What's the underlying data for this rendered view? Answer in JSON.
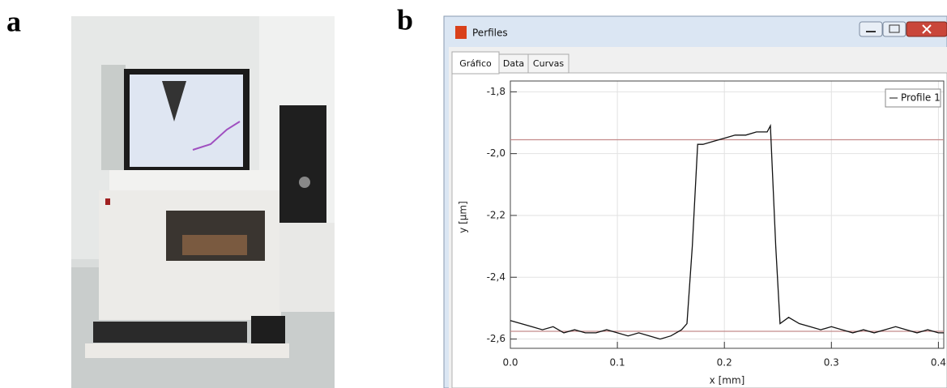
{
  "panel_labels": [
    "a",
    "b"
  ],
  "window": {
    "title": "Perfiles",
    "tabs": [
      "Gráfico",
      "Data",
      "Curvas"
    ]
  },
  "chart_data": {
    "type": "line",
    "xlabel": "x [mm]",
    "ylabel": "y [µm]",
    "x": [
      0,
      0.01,
      0.02,
      0.03,
      0.04,
      0.05,
      0.06,
      0.07,
      0.08,
      0.09,
      0.1,
      0.11,
      0.12,
      0.13,
      0.14,
      0.15,
      0.16,
      0.165,
      0.17,
      0.175,
      0.18,
      0.19,
      0.2,
      0.21,
      0.22,
      0.23,
      0.24,
      0.243,
      0.248,
      0.252,
      0.26,
      0.27,
      0.28,
      0.29,
      0.3,
      0.31,
      0.32,
      0.33,
      0.34,
      0.35,
      0.36,
      0.37,
      0.38,
      0.39,
      0.4,
      0.405
    ],
    "series": [
      {
        "name": "Profile 1",
        "color": "#111111",
        "values": [
          -2.54,
          -2.55,
          -2.56,
          -2.57,
          -2.56,
          -2.58,
          -2.57,
          -2.58,
          -2.58,
          -2.57,
          -2.58,
          -2.59,
          -2.58,
          -2.59,
          -2.6,
          -2.59,
          -2.57,
          -2.55,
          -2.3,
          -1.97,
          -1.97,
          -1.96,
          -1.95,
          -1.94,
          -1.94,
          -1.93,
          -1.93,
          -1.91,
          -2.3,
          -2.55,
          -2.53,
          -2.55,
          -2.56,
          -2.57,
          -2.56,
          -2.57,
          -2.58,
          -2.57,
          -2.58,
          -2.57,
          -2.56,
          -2.57,
          -2.58,
          -2.57,
          -2.58,
          -2.58
        ]
      }
    ],
    "reference_lines": {
      "values": [
        -1.955,
        -2.575
      ],
      "color": "#c48a8a"
    },
    "xlim": [
      0,
      0.405
    ],
    "ylim": [
      -2.63,
      -1.765
    ],
    "xticks": [
      {
        "value": 0,
        "label": "0.0"
      },
      0.1,
      0.2,
      0.3,
      0.4
    ],
    "yticks": [
      {
        "value": -1.8,
        "label": "-1,8"
      },
      {
        "value": -2.0,
        "label": "-2,0"
      },
      {
        "value": -2.2,
        "label": "-2,2"
      },
      {
        "value": -2.4,
        "label": "-2,4"
      },
      {
        "value": -2.6,
        "label": "-2,6"
      }
    ],
    "grid": true,
    "legend": "upper right"
  }
}
